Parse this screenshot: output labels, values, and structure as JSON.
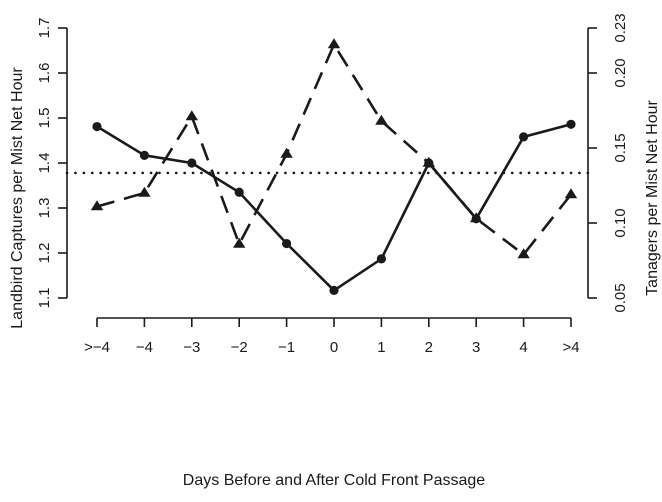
{
  "chart_data": {
    "type": "line",
    "xlabel": "Days Before and After Cold Front Passage",
    "ylabel": "Landbird Captures per Mist Net Hour",
    "y2label": "Tanagers per Mist Net Hour",
    "categories": [
      ">−4",
      "−4",
      "−3",
      "−2",
      "−1",
      "0",
      "1",
      "2",
      "3",
      "4",
      ">4"
    ],
    "ylim": [
      1.1,
      1.7
    ],
    "yticks": [
      "1.1",
      "1.2",
      "1.3",
      "1.4",
      "1.5",
      "1.6",
      "1.7"
    ],
    "y2lim": [
      0.05,
      0.23
    ],
    "y2ticks": [
      "0.05",
      "0.10",
      "0.15",
      "0.20",
      "0.23"
    ],
    "reference_line": {
      "axis": "left",
      "value": 1.378,
      "style": "dotted"
    },
    "grid": false,
    "legend": "none",
    "series": [
      {
        "axis": "left",
        "style": "solid",
        "marker": "circle",
        "values": [
          1.481,
          1.417,
          1.4,
          1.335,
          1.221,
          1.117,
          1.187,
          1.4,
          1.276,
          1.458,
          1.486
        ]
      },
      {
        "axis": "right",
        "style": "dashed",
        "marker": "triangle",
        "values": [
          0.111,
          0.12,
          0.171,
          0.086,
          0.146,
          0.219,
          0.168,
          0.14,
          0.103,
          0.079,
          0.119
        ]
      }
    ]
  }
}
